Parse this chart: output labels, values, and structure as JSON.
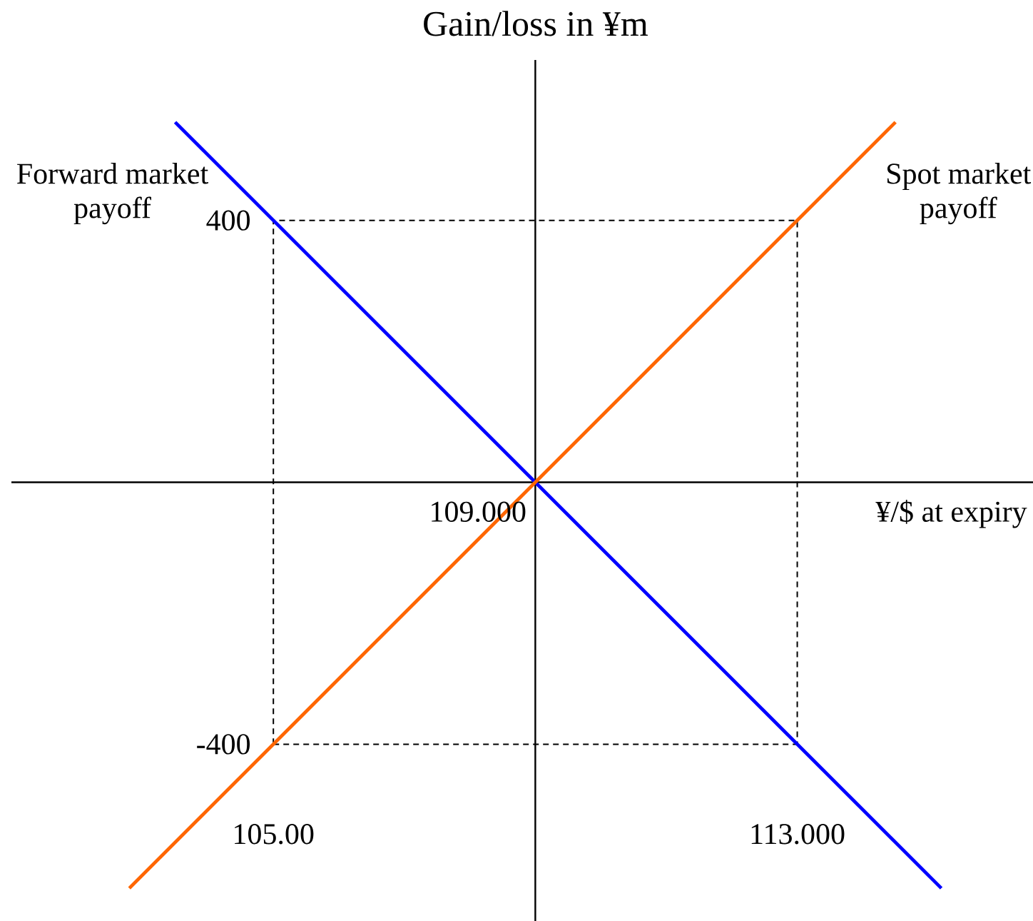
{
  "chart_data": {
    "type": "line",
    "ylabel": "Gain/loss in ¥m",
    "xlabel": "¥/$ at expiry",
    "xlim": [
      101,
      116.6
    ],
    "ylim": [
      -670,
      645
    ],
    "xticks": [
      {
        "value": 105,
        "label": "105.00"
      },
      {
        "value": 113,
        "label": "113.000"
      }
    ],
    "yticks": [
      -400,
      400
    ],
    "ref_lines": [
      {
        "axis": "y",
        "value": 0,
        "color": "#000000"
      },
      {
        "axis": "x",
        "value": 109,
        "color": "#000000"
      }
    ],
    "annotations": [
      {
        "text": "109.000",
        "x": 109,
        "y": 0
      }
    ],
    "series": [
      {
        "color": "#000000",
        "line_style": "dashed",
        "x": [
          105,
          105,
          113,
          113
        ],
        "values": [
          -400,
          400,
          400,
          -400
        ]
      },
      {
        "color": "#000000",
        "line_style": "dashed",
        "x": [
          105,
          113
        ],
        "values": [
          -400,
          -400
        ]
      },
      {
        "name": "Forward market payoff",
        "color": "#0000ff",
        "x": [
          103.5,
          115.2
        ],
        "values": [
          550,
          -620
        ]
      },
      {
        "name": "Spot market payoff",
        "color": "#ff6600",
        "x": [
          102.8,
          114.5
        ],
        "values": [
          -620,
          550
        ]
      }
    ]
  }
}
